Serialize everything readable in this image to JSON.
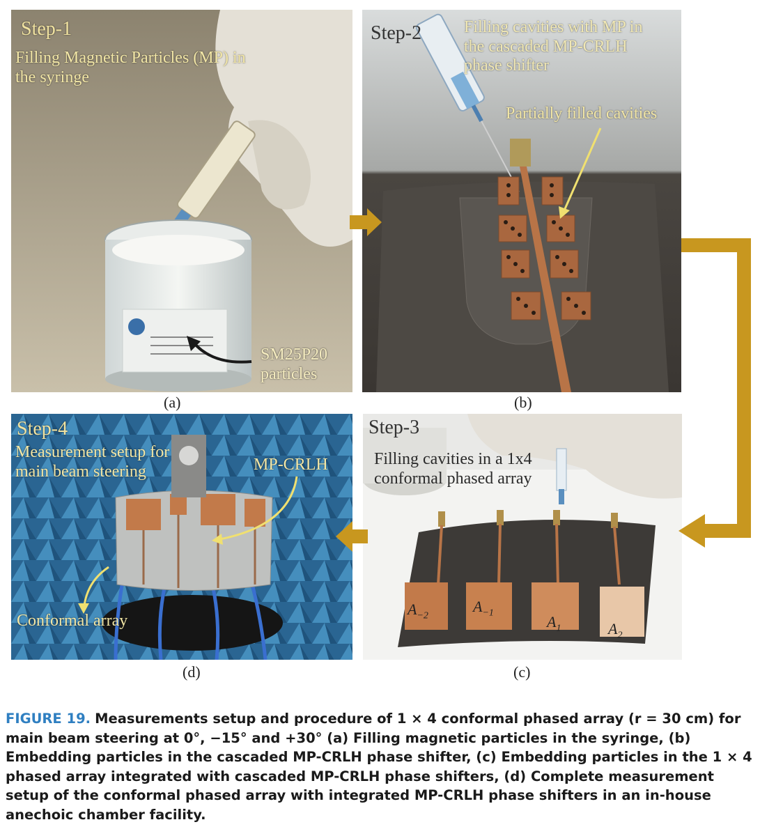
{
  "panels": {
    "a": {
      "step": "Step-1",
      "description": "Filling Magnetic Particles (MP) in\nthe syringe",
      "particles_label": "SM25P20\nparticles",
      "sublabel": "(a)"
    },
    "b": {
      "step": "Step-2",
      "description": "Filling cavities with MP in\nthe cascaded MP-CRLH\nphase shifter",
      "cavities_label": "Partially filled cavities",
      "sublabel": "(b)"
    },
    "c": {
      "step": "Step-3",
      "description": "Filling cavities in a 1x4\nconformal phased array",
      "element_labels": [
        "A",
        "A",
        "A",
        "A"
      ],
      "element_subscripts": [
        "−2",
        "−1",
        "1",
        "2"
      ],
      "sublabel": "(c)"
    },
    "d": {
      "step": "Step-4",
      "description": "Measurement setup for\nmain beam steering",
      "mpcrlh_label": "MP-CRLH",
      "array_label": "Conformal array",
      "sublabel": "(d)"
    }
  },
  "caption": {
    "label": "FIGURE 19.",
    "text": "Measurements setup and procedure of 1 × 4 conformal phased array (r = 30 cm) for main beam steering at 0°, −15° and +30° (a) Filling magnetic particles in the syringe, (b) Embedding particles in the cascaded MP-CRLH phase shifter, (c) Embedding particles in the 1 × 4 phased array integrated with cascaded MP-CRLH phase shifters, (d) Complete measurement setup of the conformal phased array with integrated MP-CRLH phase shifters in an in-house anechoic chamber facility."
  },
  "colors": {
    "flow_arrow": "#c8971f",
    "annotation_arrow_yellow": "#f0e070",
    "caption_label": "#2f7fc1",
    "copper": "#c27a4a",
    "anechoic_blue": "#3f8fc4"
  }
}
